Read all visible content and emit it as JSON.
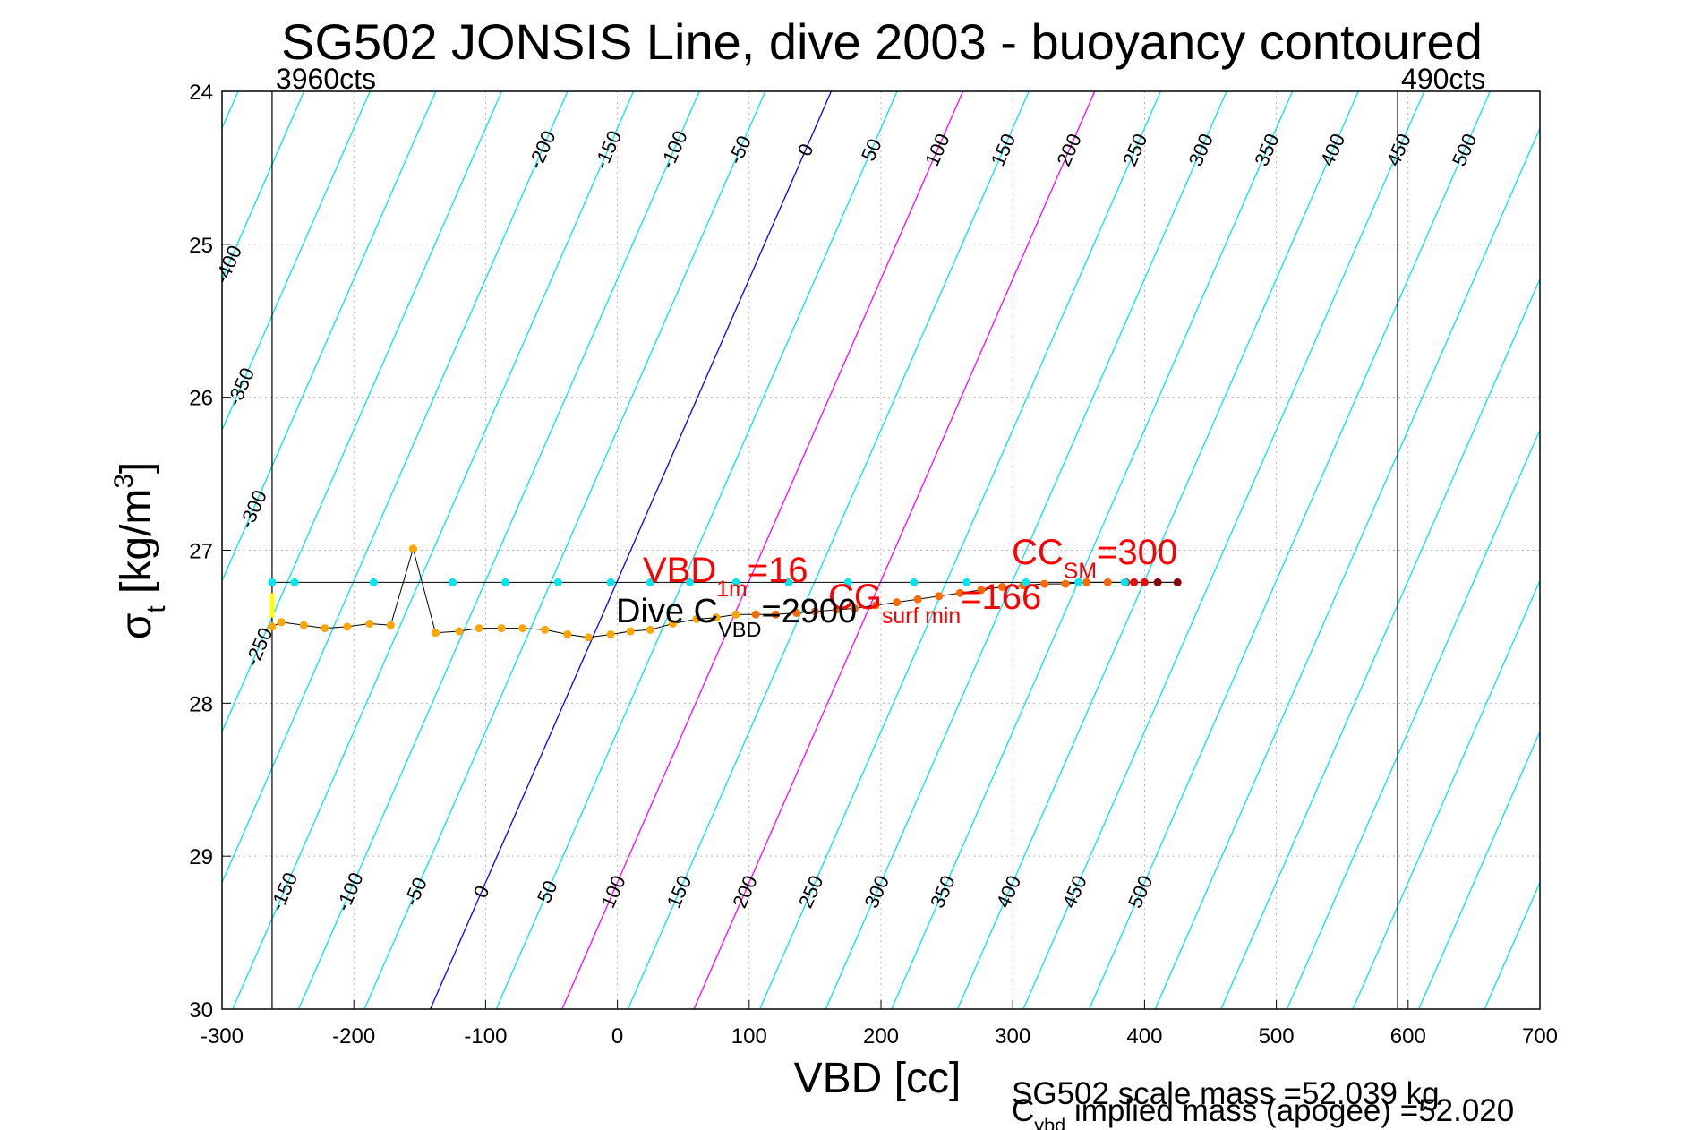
{
  "chart_data": {
    "type": "scatter",
    "title": "SG502 JONSIS Line, dive 2003 - buoyancy contoured",
    "xlabel": "VBD [cc]",
    "ylabel": {
      "main": "σ",
      "sub": "t",
      "unit_pre": " [kg/m",
      "unit_sup": "3",
      "unit_post": "]"
    },
    "xlim": [
      -300,
      700
    ],
    "ylim": [
      24,
      30
    ],
    "y_reversed": true,
    "grid": true,
    "x_ticks": [
      -300,
      -200,
      -100,
      0,
      100,
      200,
      300,
      400,
      500,
      600,
      700
    ],
    "y_ticks": [
      24,
      25,
      26,
      27,
      28,
      29,
      30
    ],
    "limits": [
      {
        "label": "3960cts",
        "x": -262
      },
      {
        "label": "490cts",
        "x": 592
      }
    ],
    "contours": {
      "slope_cc_per_kgm3": -50.7,
      "ref_sigma": 27.2,
      "base_color": "#00e5ee",
      "zero_color": "#0000ff",
      "highlight_color": "#ff00ff",
      "highlight_levels": [
        100,
        200
      ],
      "top_labels": [
        "-400",
        "-350",
        "-300",
        "-250",
        "-200",
        "-150",
        "-100",
        "-50",
        "0",
        "50",
        "100",
        "150",
        "200",
        "250",
        "300",
        "350",
        "400",
        "450",
        "500"
      ],
      "bottom_labels": [
        "-200",
        "-150",
        "-100",
        "-50",
        "0",
        "50",
        "100",
        "150",
        "200",
        "250",
        "300",
        "350",
        "400",
        "450",
        "500"
      ]
    },
    "series": [
      {
        "role": "dive",
        "color": "#ffa500",
        "points": [
          [
            -262,
            27.5
          ],
          [
            -255,
            27.47
          ],
          [
            -238,
            27.49
          ],
          [
            -222,
            27.51
          ],
          [
            -205,
            27.5
          ],
          [
            -188,
            27.48
          ],
          [
            -172,
            27.49
          ],
          [
            -155,
            26.99
          ],
          [
            -138,
            27.54
          ],
          [
            -120,
            27.53
          ],
          [
            -105,
            27.51
          ],
          [
            -88,
            27.51
          ],
          [
            -72,
            27.51
          ],
          [
            -55,
            27.52
          ],
          [
            -38,
            27.55
          ],
          [
            -22,
            27.57
          ],
          [
            -5,
            27.55
          ],
          [
            10,
            27.53
          ],
          [
            25,
            27.52
          ],
          [
            42,
            27.48
          ],
          [
            60,
            27.45
          ],
          [
            75,
            27.44
          ],
          [
            90,
            27.42
          ]
        ]
      },
      {
        "role": "dive-late",
        "color": "#ff6a00",
        "points": [
          [
            105,
            27.42
          ],
          [
            120,
            27.42
          ],
          [
            136,
            27.41
          ],
          [
            150,
            27.4
          ],
          [
            166,
            27.39
          ],
          [
            180,
            27.38
          ],
          [
            196,
            27.36
          ],
          [
            212,
            27.34
          ],
          [
            228,
            27.32
          ],
          [
            244,
            27.3
          ],
          [
            260,
            27.28
          ],
          [
            276,
            27.26
          ],
          [
            292,
            27.24
          ],
          [
            308,
            27.23
          ],
          [
            324,
            27.22
          ],
          [
            340,
            27.22
          ],
          [
            356,
            27.21
          ],
          [
            372,
            27.21
          ]
        ]
      },
      {
        "role": "deep",
        "color": "#e01000",
        "points": [
          [
            386,
            27.21
          ],
          [
            392,
            27.21
          ],
          [
            400,
            27.21
          ]
        ]
      },
      {
        "role": "apogee",
        "color": "#8b0000",
        "points": [
          [
            410,
            27.21
          ],
          [
            425,
            27.21
          ]
        ]
      },
      {
        "role": "climb",
        "color": "#00e5ee",
        "points": [
          [
            -262,
            27.21
          ],
          [
            -245,
            27.21
          ],
          [
            -185,
            27.21
          ],
          [
            -125,
            27.21
          ],
          [
            -85,
            27.21
          ],
          [
            -45,
            27.21
          ],
          [
            -5,
            27.21
          ],
          [
            25,
            27.21
          ],
          [
            55,
            27.21
          ],
          [
            90,
            27.21
          ],
          [
            130,
            27.21
          ],
          [
            175,
            27.21
          ],
          [
            225,
            27.21
          ],
          [
            265,
            27.21
          ],
          [
            310,
            27.21
          ],
          [
            350,
            27.21
          ],
          [
            385,
            27.21
          ]
        ]
      },
      {
        "role": "surface",
        "color": "#ffff00",
        "points": [
          [
            -262,
            27.28
          ],
          [
            -262,
            27.36
          ],
          [
            -262,
            27.44
          ]
        ]
      }
    ],
    "annotations": {
      "vbd1m": {
        "main": "VBD",
        "sub": "1m",
        "post": "=16"
      },
      "cc_sm": {
        "main": "CC",
        "sub": "SM",
        "post": "=300"
      },
      "cg": {
        "main": "CG",
        "sub": "surf min",
        "post": "=166"
      },
      "dive_cvbd": {
        "main": "Dive C",
        "sub": "VBD",
        "post": "=2900"
      }
    },
    "footer": {
      "scale_mass": "SG502 scale mass =52.039 kg",
      "implied_main": "C",
      "implied_sub": "vbd",
      "implied_post": " implied mass (apogee) =52.020"
    }
  }
}
